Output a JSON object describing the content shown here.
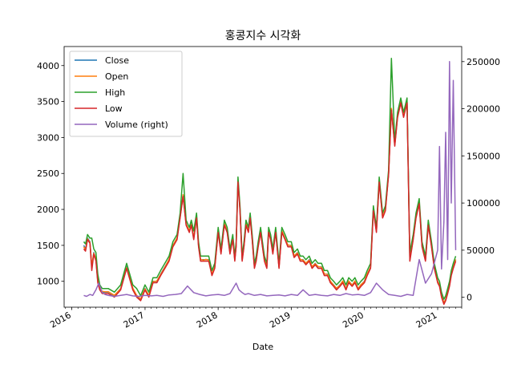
{
  "chart_data": {
    "type": "line",
    "title": "홍콩지수 시각화",
    "xlabel": "Date",
    "ylabel": "",
    "ylabel_right": "",
    "x_tick_labels": [
      "2016",
      "2017",
      "2018",
      "2019",
      "2020",
      "2021"
    ],
    "x_tick_dates": [
      "2016-01-01",
      "2017-01-01",
      "2018-01-01",
      "2019-01-01",
      "2020-01-01",
      "2021-01-01"
    ],
    "xlim": [
      "2015-11-24",
      "2021-05-01"
    ],
    "ylim": [
      640,
      4265
    ],
    "ylim_right": [
      -10500,
      266000
    ],
    "y_ticks": [
      1000,
      1500,
      2000,
      2500,
      3000,
      3500,
      4000
    ],
    "y_ticks_right": [
      0,
      50000,
      100000,
      150000,
      200000,
      250000
    ],
    "y_tick_labels_right": [
      "0",
      "50000",
      "100000",
      "150000",
      "200000",
      "250000"
    ],
    "legend_position": "top-left",
    "grid": false,
    "colors": {
      "Close": "#1f77b4",
      "Open": "#ff7f0e",
      "High": "#2ca02c",
      "Low": "#d62728",
      "Volume": "#9467bd"
    },
    "price_series": {
      "dates": [
        "2016-03-01",
        "2016-03-10",
        "2016-03-20",
        "2016-04-01",
        "2016-04-10",
        "2016-04-20",
        "2016-05-01",
        "2016-05-10",
        "2016-05-20",
        "2016-06-01",
        "2016-06-15",
        "2016-07-01",
        "2016-08-01",
        "2016-09-01",
        "2016-10-01",
        "2016-11-01",
        "2016-11-20",
        "2016-12-10",
        "2017-01-01",
        "2017-01-20",
        "2017-02-10",
        "2017-03-01",
        "2017-03-20",
        "2017-04-10",
        "2017-05-01",
        "2017-05-20",
        "2017-06-10",
        "2017-06-25",
        "2017-07-10",
        "2017-07-25",
        "2017-08-10",
        "2017-08-20",
        "2017-09-01",
        "2017-09-15",
        "2017-09-25",
        "2017-10-05",
        "2017-10-20",
        "2017-11-01",
        "2017-11-15",
        "2017-12-01",
        "2017-12-15",
        "2018-01-01",
        "2018-01-15",
        "2018-02-01",
        "2018-02-15",
        "2018-03-01",
        "2018-03-15",
        "2018-03-25",
        "2018-04-01",
        "2018-04-10",
        "2018-04-20",
        "2018-05-01",
        "2018-05-10",
        "2018-05-20",
        "2018-06-01",
        "2018-06-10",
        "2018-06-20",
        "2018-07-01",
        "2018-07-10",
        "2018-07-20",
        "2018-08-01",
        "2018-08-10",
        "2018-08-20",
        "2018-09-01",
        "2018-09-10",
        "2018-09-20",
        "2018-10-01",
        "2018-10-15",
        "2018-11-01",
        "2018-11-15",
        "2018-12-01",
        "2018-12-15",
        "2019-01-01",
        "2019-01-15",
        "2019-02-01",
        "2019-02-15",
        "2019-03-01",
        "2019-03-15",
        "2019-04-01",
        "2019-04-15",
        "2019-05-01",
        "2019-05-15",
        "2019-06-01",
        "2019-06-15",
        "2019-07-01",
        "2019-07-15",
        "2019-08-01",
        "2019-08-15",
        "2019-09-01",
        "2019-09-15",
        "2019-10-01",
        "2019-10-15",
        "2019-11-01",
        "2019-11-15",
        "2019-12-01",
        "2019-12-15",
        "2020-01-01",
        "2020-01-15",
        "2020-02-01",
        "2020-02-15",
        "2020-03-01",
        "2020-03-15",
        "2020-04-01",
        "2020-04-15",
        "2020-05-01",
        "2020-05-15",
        "2020-06-01",
        "2020-06-15",
        "2020-07-01",
        "2020-07-15",
        "2020-08-01",
        "2020-08-15",
        "2020-09-01",
        "2020-09-15",
        "2020-10-01",
        "2020-10-15",
        "2020-11-01",
        "2020-11-15",
        "2020-12-01",
        "2020-12-15",
        "2021-01-01",
        "2021-01-10",
        "2021-01-20",
        "2021-02-01",
        "2021-02-10",
        "2021-02-20",
        "2021-03-01",
        "2021-03-10",
        "2021-03-20",
        "2021-04-01"
      ],
      "close": [
        1500,
        1450,
        1600,
        1550,
        1200,
        1400,
        1300,
        1000,
        900,
        850,
        850,
        850,
        800,
        900,
        1200,
        900,
        800,
        750,
        900,
        800,
        1000,
        1000,
        1100,
        1200,
        1300,
        1500,
        1600,
        1900,
        2200,
        1800,
        1700,
        1800,
        1600,
        1900,
        1500,
        1300,
        1300,
        1300,
        1300,
        1100,
        1200,
        1700,
        1400,
        1800,
        1700,
        1400,
        1600,
        1300,
        1500,
        2400,
        2000,
        1300,
        1500,
        1800,
        1700,
        1900,
        1600,
        1200,
        1300,
        1500,
        1700,
        1500,
        1300,
        1200,
        1700,
        1600,
        1400,
        1700,
        1200,
        1700,
        1600,
        1500,
        1500,
        1350,
        1400,
        1300,
        1300,
        1250,
        1300,
        1200,
        1250,
        1200,
        1200,
        1100,
        1100,
        1000,
        950,
        900,
        950,
        1000,
        900,
        1000,
        950,
        1000,
        900,
        950,
        1000,
        1100,
        1200,
        2000,
        1700,
        2400,
        1900,
        2000,
        2500,
        3400,
        2900,
        3300,
        3500,
        3300,
        3500,
        1300,
        1600,
        1900,
        2100,
        1500,
        1300,
        1800,
        1500,
        1200,
        1000,
        950,
        800,
        700,
        750,
        850,
        950,
        1100,
        1200,
        1300
      ],
      "open": [
        1480,
        1440,
        1590,
        1540,
        1210,
        1390,
        1310,
        1010,
        910,
        860,
        855,
        855,
        805,
        895,
        1190,
        905,
        805,
        755,
        895,
        805,
        995,
        1005,
        1095,
        1195,
        1305,
        1495,
        1605,
        1895,
        2205,
        1795,
        1705,
        1795,
        1605,
        1895,
        1505,
        1305,
        1295,
        1305,
        1295,
        1105,
        1195,
        1705,
        1395,
        1805,
        1695,
        1405,
        1595,
        1305,
        1495,
        2395,
        2005,
        1305,
        1495,
        1805,
        1695,
        1905,
        1595,
        1205,
        1295,
        1505,
        1695,
        1505,
        1295,
        1205,
        1695,
        1605,
        1395,
        1705,
        1195,
        1705,
        1595,
        1505,
        1495,
        1355,
        1395,
        1305,
        1295,
        1255,
        1295,
        1205,
        1245,
        1205,
        1195,
        1105,
        1095,
        1005,
        945,
        905,
        945,
        1005,
        895,
        1005,
        945,
        1005,
        895,
        955,
        995,
        1105,
        1195,
        2005,
        1695,
        2405,
        1895,
        2005,
        2495,
        3405,
        2895,
        3305,
        3495,
        3305,
        3495,
        1305,
        1595,
        1905,
        2095,
        1505,
        1295,
        1805,
        1495,
        1205,
        995,
        955,
        795,
        705,
        745,
        855,
        945,
        1105,
        1195,
        1305
      ],
      "high": [
        1550,
        1520,
        1650,
        1600,
        1600,
        1450,
        1400,
        1100,
        950,
        900,
        900,
        900,
        850,
        950,
        1250,
        950,
        900,
        800,
        950,
        850,
        1050,
        1050,
        1150,
        1250,
        1350,
        1550,
        1650,
        1950,
        2500,
        1850,
        1750,
        1850,
        1700,
        1950,
        1550,
        1350,
        1350,
        1350,
        1350,
        1150,
        1250,
        1750,
        1450,
        1850,
        1750,
        1450,
        1650,
        1350,
        1550,
        2450,
        2050,
        1350,
        1550,
        1850,
        1750,
        1950,
        1650,
        1250,
        1350,
        1550,
        1750,
        1550,
        1350,
        1250,
        1750,
        1650,
        1450,
        1750,
        1250,
        1750,
        1650,
        1550,
        1550,
        1400,
        1450,
        1350,
        1350,
        1300,
        1350,
        1250,
        1300,
        1250,
        1250,
        1150,
        1150,
        1050,
        1000,
        950,
        1000,
        1050,
        950,
        1050,
        1000,
        1050,
        950,
        1000,
        1050,
        1150,
        1250,
        2050,
        1750,
        2450,
        1950,
        2050,
        2550,
        4100,
        2950,
        3350,
        3550,
        3350,
        3550,
        1400,
        1650,
        1950,
        2150,
        1550,
        1350,
        1850,
        1550,
        1250,
        1050,
        1000,
        850,
        750,
        800,
        900,
        1000,
        1150,
        1250,
        1350
      ],
      "low": [
        1450,
        1420,
        1580,
        1530,
        1150,
        1380,
        1280,
        980,
        880,
        830,
        830,
        830,
        780,
        880,
        1180,
        880,
        780,
        730,
        880,
        780,
        980,
        980,
        1080,
        1180,
        1280,
        1480,
        1580,
        1880,
        2180,
        1780,
        1680,
        1780,
        1580,
        1880,
        1480,
        1280,
        1280,
        1280,
        1280,
        1080,
        1180,
        1680,
        1380,
        1780,
        1680,
        1380,
        1580,
        1280,
        1480,
        2380,
        1980,
        1280,
        1480,
        1780,
        1680,
        1880,
        1580,
        1180,
        1280,
        1480,
        1680,
        1480,
        1280,
        1180,
        1680,
        1580,
        1380,
        1680,
        1180,
        1680,
        1580,
        1480,
        1480,
        1330,
        1380,
        1280,
        1280,
        1230,
        1280,
        1180,
        1230,
        1180,
        1180,
        1080,
        1080,
        980,
        930,
        880,
        930,
        980,
        880,
        980,
        930,
        980,
        880,
        930,
        980,
        1080,
        1180,
        1980,
        1680,
        2380,
        1880,
        1980,
        2480,
        3380,
        2880,
        3280,
        3480,
        3280,
        3480,
        1280,
        1580,
        1880,
        2080,
        1480,
        1280,
        1780,
        1480,
        1180,
        980,
        930,
        780,
        680,
        730,
        830,
        930,
        1080,
        1180,
        1280
      ]
    },
    "volume_series": {
      "dates": [
        "2016-03-01",
        "2016-03-15",
        "2016-04-01",
        "2016-04-15",
        "2016-05-01",
        "2016-05-15",
        "2016-06-01",
        "2016-06-15",
        "2016-07-01",
        "2016-08-01",
        "2016-09-01",
        "2016-10-01",
        "2016-11-01",
        "2016-12-01",
        "2017-01-01",
        "2017-02-01",
        "2017-03-01",
        "2017-04-01",
        "2017-05-01",
        "2017-06-01",
        "2017-07-01",
        "2017-08-01",
        "2017-09-01",
        "2017-10-01",
        "2017-11-01",
        "2017-12-01",
        "2018-01-01",
        "2018-02-01",
        "2018-03-01",
        "2018-04-01",
        "2018-04-15",
        "2018-05-01",
        "2018-05-15",
        "2018-06-01",
        "2018-07-01",
        "2018-08-01",
        "2018-09-01",
        "2018-10-01",
        "2018-11-01",
        "2018-12-01",
        "2019-01-01",
        "2019-02-01",
        "2019-03-01",
        "2019-04-01",
        "2019-05-01",
        "2019-06-01",
        "2019-07-01",
        "2019-08-01",
        "2019-09-01",
        "2019-10-01",
        "2019-11-01",
        "2019-12-01",
        "2020-01-01",
        "2020-02-01",
        "2020-03-01",
        "2020-04-01",
        "2020-05-01",
        "2020-06-01",
        "2020-07-01",
        "2020-08-01",
        "2020-09-01",
        "2020-10-01",
        "2020-11-01",
        "2020-12-01",
        "2021-01-01",
        "2021-01-10",
        "2021-01-20",
        "2021-02-01",
        "2021-02-10",
        "2021-02-20",
        "2021-03-01",
        "2021-03-10",
        "2021-03-20",
        "2021-04-01"
      ],
      "volume": [
        2000,
        1000,
        3000,
        2000,
        8000,
        15000,
        5000,
        3000,
        2000,
        1000,
        2000,
        3000,
        1500,
        1000,
        2000,
        1500,
        2000,
        1000,
        2500,
        3000,
        4000,
        12000,
        5000,
        3000,
        1500,
        2500,
        3000,
        2000,
        4000,
        15000,
        8000,
        5000,
        3000,
        4000,
        2000,
        3000,
        1500,
        2000,
        2500,
        1500,
        3000,
        2000,
        8000,
        2000,
        3000,
        2000,
        1500,
        3000,
        2000,
        4000,
        2500,
        3000,
        2000,
        5000,
        15000,
        8000,
        3000,
        2000,
        1000,
        3000,
        2000,
        40000,
        15000,
        25000,
        50000,
        160000,
        30000,
        80000,
        175000,
        40000,
        250000,
        100000,
        230000,
        50000
      ]
    }
  },
  "legend": {
    "items": [
      {
        "label": "Close",
        "color": "#1f77b4"
      },
      {
        "label": "Open",
        "color": "#ff7f0e"
      },
      {
        "label": "High",
        "color": "#2ca02c"
      },
      {
        "label": "Low",
        "color": "#d62728"
      },
      {
        "label": "Volume (right)",
        "color": "#9467bd"
      }
    ]
  }
}
